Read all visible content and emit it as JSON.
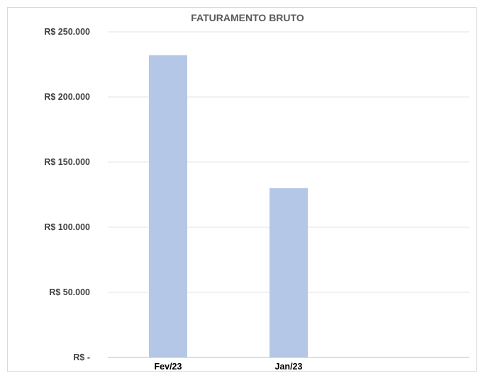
{
  "chart_data": {
    "type": "bar",
    "title": "FATURAMENTO BRUTO",
    "categories": [
      "Fev/23",
      "Jan/23"
    ],
    "values": [
      232000,
      130000
    ],
    "ylim": [
      0,
      250000
    ],
    "yticks": [
      0,
      50000,
      100000,
      150000,
      200000,
      250000
    ],
    "ytick_labels": [
      "R$ -",
      "R$ 50.000",
      "R$ 100.000",
      "R$ 150.000",
      "R$ 200.000",
      "R$ 250.000"
    ],
    "grid": true,
    "bar_color": "#b4c7e7",
    "grid_color": "#e3e3e3"
  }
}
